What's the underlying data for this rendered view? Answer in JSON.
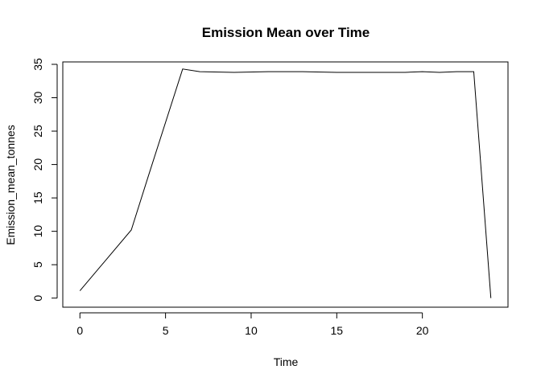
{
  "chart_data": {
    "type": "line",
    "title": "Emission Mean over Time",
    "xlabel": "Time",
    "ylabel": "Emission_mean_tonnes",
    "xlim": [
      -1.0,
      25.0
    ],
    "ylim": [
      -1.36,
      35.36
    ],
    "xticks": [
      0,
      5,
      10,
      15,
      20
    ],
    "yticks": [
      0,
      5,
      10,
      15,
      20,
      25,
      30,
      35
    ],
    "grid": false,
    "legend": "none",
    "colors": {
      "line": "#000000",
      "frame": "#000000",
      "background": "#ffffff"
    },
    "series": [
      {
        "x": [
          0,
          3,
          4,
          6,
          7,
          9,
          11,
          13,
          15,
          17,
          19,
          20,
          21,
          22,
          23,
          24
        ],
        "y": [
          1.1,
          10.2,
          18.3,
          34.3,
          33.9,
          33.8,
          33.9,
          33.9,
          33.8,
          33.8,
          33.8,
          33.9,
          33.8,
          33.9,
          33.9,
          0.0
        ]
      }
    ]
  }
}
